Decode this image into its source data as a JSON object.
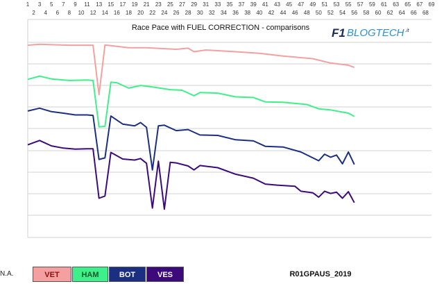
{
  "chart_data": {
    "type": "line",
    "title": "Race Pace with FUEL CORRECTION - comparisons",
    "x_top_ticks": [
      1,
      3,
      5,
      7,
      9,
      11,
      13,
      15,
      17,
      19,
      21,
      23,
      25,
      27,
      29,
      31,
      33,
      35,
      37,
      39,
      41,
      43,
      45,
      47,
      49,
      51,
      53,
      55,
      57,
      59,
      61,
      63,
      65,
      67,
      69
    ],
    "x_bottom_ticks": [
      2,
      4,
      6,
      8,
      10,
      12,
      14,
      16,
      18,
      20,
      22,
      24,
      26,
      28,
      30,
      32,
      34,
      36,
      38,
      40,
      42,
      44,
      46,
      48,
      50,
      52,
      54,
      56,
      58,
      60,
      62,
      64,
      66,
      68
    ],
    "xlim": [
      1,
      69
    ],
    "ylim": [
      0,
      10
    ],
    "grid": "horizontal",
    "legend_position": "bottom",
    "series": [
      {
        "name": "VET",
        "color": "#f4a0a0",
        "x": [
          1,
          3,
          5,
          8,
          12,
          13,
          14,
          15,
          18,
          21,
          26,
          28,
          29,
          31,
          36,
          40,
          44,
          49,
          52,
          55,
          56
        ],
        "y": [
          8.82,
          8.86,
          8.84,
          8.82,
          8.82,
          6.55,
          8.83,
          8.8,
          8.7,
          8.7,
          8.63,
          8.68,
          8.52,
          8.6,
          8.52,
          8.45,
          8.32,
          8.2,
          8.0,
          7.9,
          7.8
        ]
      },
      {
        "name": "HAM",
        "color": "#3ef08a",
        "x": [
          1,
          3,
          5,
          8,
          11,
          12,
          13,
          14,
          15,
          16,
          18,
          20,
          22,
          25,
          27,
          29,
          30,
          33,
          36,
          39,
          41,
          44,
          48,
          50,
          52,
          55,
          56
        ],
        "y": [
          7.25,
          7.4,
          7.27,
          7.2,
          7.22,
          7.2,
          5.07,
          5.1,
          7.12,
          7.1,
          6.85,
          6.97,
          6.9,
          6.78,
          6.75,
          6.5,
          6.65,
          6.62,
          6.45,
          6.42,
          6.22,
          6.2,
          6.1,
          5.9,
          5.85,
          5.7,
          5.55
        ]
      },
      {
        "name": "BOT",
        "color": "#1a2e82",
        "x": [
          1,
          3,
          5,
          7,
          9,
          11,
          12,
          13,
          14,
          15,
          17,
          19,
          20,
          21,
          22,
          23,
          24,
          26,
          28,
          30,
          33,
          36,
          39,
          41,
          44,
          47,
          50,
          51,
          52,
          53,
          54,
          55,
          56
        ],
        "y": [
          5.8,
          5.93,
          5.77,
          5.7,
          5.62,
          5.62,
          5.6,
          3.58,
          3.65,
          5.57,
          5.2,
          5.12,
          5.27,
          5.05,
          3.1,
          5.12,
          5.15,
          4.9,
          4.95,
          4.7,
          4.68,
          4.48,
          4.43,
          4.18,
          4.15,
          3.92,
          3.52,
          3.82,
          3.68,
          3.78,
          3.38,
          3.92,
          3.35
        ]
      },
      {
        "name": "VES",
        "color": "#3c0a7a",
        "x": [
          1,
          3,
          5,
          7,
          9,
          11,
          12,
          13,
          14,
          15,
          17,
          19,
          20,
          21,
          22,
          23,
          24,
          25,
          26,
          28,
          29,
          30,
          33,
          36,
          39,
          41,
          43,
          46,
          47,
          49,
          50,
          51,
          52,
          53,
          54,
          55,
          56
        ],
        "y": [
          4.25,
          4.45,
          4.2,
          4.1,
          4.05,
          4.07,
          4.07,
          1.8,
          1.9,
          3.9,
          3.6,
          3.55,
          3.62,
          3.4,
          1.35,
          3.5,
          1.3,
          3.45,
          3.42,
          3.28,
          3.1,
          3.3,
          3.2,
          2.9,
          2.72,
          2.45,
          2.4,
          2.35,
          2.12,
          2.05,
          1.85,
          2.12,
          2.02,
          2.08,
          1.8,
          2.1,
          1.6
        ]
      }
    ]
  },
  "footer": {
    "na_label": "N.A.",
    "legend": [
      {
        "label": "VET",
        "bg": "#f4a0a0",
        "fg": "#8a1010"
      },
      {
        "label": "HAM",
        "bg": "#3ef08a",
        "fg": "#0a5a2a"
      },
      {
        "label": "BOT",
        "bg": "#1a2e82",
        "fg": "#ffffff"
      },
      {
        "label": "VES",
        "bg": "#3c0a7a",
        "fg": "#ffffff"
      }
    ],
    "race_label": "R01GPAUS_2019"
  },
  "logo": {
    "f1": "F1",
    "text": "BLOGTECH",
    "suffix": ".it"
  }
}
